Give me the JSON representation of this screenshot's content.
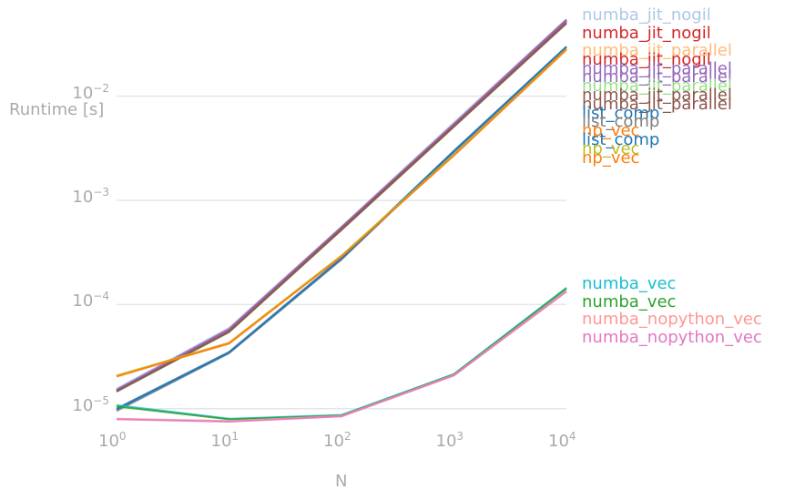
{
  "chart_data": {
    "type": "line",
    "title": "",
    "xlabel": "N",
    "ylabel": "Runtime [s]",
    "xscale": "log",
    "yscale": "log",
    "xlim": [
      1,
      10000
    ],
    "ylim": [
      7.2e-06,
      0.084
    ],
    "grid": "horizontal",
    "x": [
      1,
      10,
      100,
      1000,
      10000
    ],
    "x_ticks": [
      {
        "base": "10",
        "exp": "0",
        "value": 1
      },
      {
        "base": "10",
        "exp": "1",
        "value": 10
      },
      {
        "base": "10",
        "exp": "2",
        "value": 100
      },
      {
        "base": "10",
        "exp": "3",
        "value": 1000
      },
      {
        "base": "10",
        "exp": "4",
        "value": 10000
      }
    ],
    "y_ticks": [
      {
        "base": "10",
        "exp": "−5",
        "value": 1e-05
      },
      {
        "base": "10",
        "exp": "−4",
        "value": 0.0001
      },
      {
        "base": "10",
        "exp": "−3",
        "value": 0.001
      },
      {
        "base": "10",
        "exp": "−2",
        "value": 0.01
      }
    ],
    "series": [
      {
        "name": "numba_jit_nogil",
        "color": "#aec7e8",
        "values": [
          1.55e-05,
          5.95e-05,
          0.00056,
          0.0056,
          0.055
        ]
      },
      {
        "name": "numba_jit_nogil",
        "color": "#d62728",
        "values": [
          1.5e-05,
          5.75e-05,
          0.00055,
          0.0054,
          0.054
        ]
      },
      {
        "name": "numba_jit_parallel",
        "color": "#ffbb78",
        "values": [
          1.5e-05,
          5.7e-05,
          0.00054,
          0.0053,
          0.053
        ]
      },
      {
        "name": "numba_jit_nogil",
        "color": "#d62728",
        "values": [
          1.48e-05,
          5.65e-05,
          0.00054,
          0.0053,
          0.053
        ]
      },
      {
        "name": "numba_jit_parallel",
        "color": "#9467bd",
        "values": [
          1.52e-05,
          5.8e-05,
          0.00055,
          0.0054,
          0.054
        ]
      },
      {
        "name": "numba_jit_parallel",
        "color": "#9467bd",
        "values": [
          1.49e-05,
          5.6e-05,
          0.00053,
          0.0052,
          0.052
        ]
      },
      {
        "name": "numba_jit_parallel",
        "color": "#98df8a",
        "values": [
          1.45e-05,
          5.4e-05,
          0.00052,
          0.0051,
          0.05
        ]
      },
      {
        "name": "numba_jit_parallel",
        "color": "#8c564b",
        "values": [
          1.47e-05,
          5.5e-05,
          0.00053,
          0.0052,
          0.051
        ]
      },
      {
        "name": "numba_jit_parallel",
        "color": "#8c564b",
        "values": [
          1.46e-05,
          5.45e-05,
          0.00052,
          0.0051,
          0.05
        ]
      },
      {
        "name": "list_comp",
        "color": "#1f77b4",
        "values": [
          1e-05,
          3.5e-05,
          0.00028,
          0.003,
          0.03
        ]
      },
      {
        "name": "list_comp",
        "color": "#7f7f7f",
        "values": [
          9.5e-06,
          3.4e-05,
          0.00027,
          0.0029,
          0.0295
        ]
      },
      {
        "name": "np_vec",
        "color": "#ff7f0e",
        "values": [
          2.05e-05,
          4.2e-05,
          0.00029,
          0.0027,
          0.028
        ]
      },
      {
        "name": "list_comp",
        "color": "#1f77b4",
        "values": [
          9.8e-06,
          3.45e-05,
          0.000275,
          0.00295,
          0.0298
        ]
      },
      {
        "name": "np_vec",
        "color": "#bcbd22",
        "values": [
          2.08e-05,
          4.3e-05,
          0.000295,
          0.00275,
          0.0285
        ]
      },
      {
        "name": "np_vec",
        "color": "#ff7f0e",
        "values": [
          2.03e-05,
          4.25e-05,
          0.00029,
          0.0027,
          0.0282
        ]
      },
      {
        "name": "numba_vec",
        "color": "#17becf",
        "values": [
          1.08e-05,
          8e-06,
          8.7e-06,
          2.15e-05,
          0.000145
        ]
      },
      {
        "name": "numba_vec",
        "color": "#2ca02c",
        "values": [
          1.05e-05,
          7.9e-06,
          8.6e-06,
          2.13e-05,
          0.000142
        ]
      },
      {
        "name": "numba_nopython_vec",
        "color": "#ff9896",
        "values": [
          8e-06,
          7.6e-06,
          8.5e-06,
          2.1e-05,
          0.000135
        ]
      },
      {
        "name": "numba_nopython_vec",
        "color": "#e377c2",
        "values": [
          7.9e-06,
          7.5e-06,
          8.4e-06,
          2.08e-05,
          0.000133
        ]
      }
    ]
  }
}
